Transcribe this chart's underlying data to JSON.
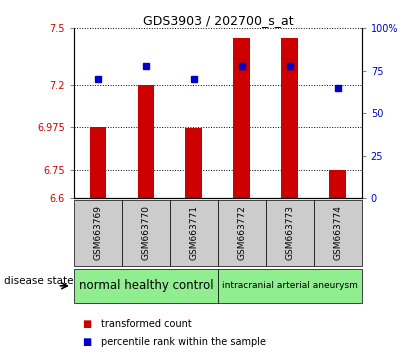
{
  "title": "GDS3903 / 202700_s_at",
  "samples": [
    "GSM663769",
    "GSM663770",
    "GSM663771",
    "GSM663772",
    "GSM663773",
    "GSM663774"
  ],
  "bar_values": [
    6.975,
    7.2,
    6.97,
    7.45,
    7.45,
    6.75
  ],
  "bar_base": 6.6,
  "percentile_values": [
    70,
    78,
    70,
    78,
    78,
    65
  ],
  "ylim_left": [
    6.6,
    7.5
  ],
  "ylim_right": [
    0,
    100
  ],
  "yticks_left": [
    6.6,
    6.75,
    6.975,
    7.2,
    7.5
  ],
  "ytick_labels_left": [
    "6.6",
    "6.75",
    "6.975",
    "7.2",
    "7.5"
  ],
  "yticks_right": [
    0,
    25,
    50,
    75,
    100
  ],
  "ytick_labels_right": [
    "0",
    "25",
    "50",
    "75",
    "100%"
  ],
  "bar_color": "#cc0000",
  "percentile_color": "#0000cc",
  "group_labels": [
    "normal healthy control",
    "intracranial arterial aneurysm"
  ],
  "group_ranges": [
    [
      0,
      2
    ],
    [
      3,
      5
    ]
  ],
  "group_color_1": "#90EE90",
  "group_color_2": "#90EE90",
  "disease_state_label": "disease state",
  "legend_bar_label": "transformed count",
  "legend_pct_label": "percentile rank within the sample",
  "tick_label_color_left": "#cc0000",
  "tick_label_color_right": "#0000cc",
  "sample_box_color": "#cccccc",
  "bar_width": 0.35
}
